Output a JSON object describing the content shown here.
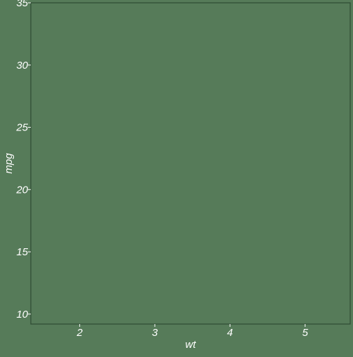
{
  "colors": {
    "background": "#567b59",
    "panel_border": "#2f4a33",
    "tick": "#ffffff",
    "text": "#ffffff"
  },
  "chart_data": {
    "type": "scatter",
    "title": "",
    "xlabel": "wt",
    "ylabel": "mpg",
    "xlim": [
      1.35,
      5.6
    ],
    "ylim": [
      9.2,
      35.0
    ],
    "x_ticks": [
      2,
      3,
      4,
      5
    ],
    "x_tick_labels": [
      "2",
      "3",
      "4",
      "5"
    ],
    "y_ticks": [
      10,
      15,
      20,
      25,
      30,
      35
    ],
    "y_tick_labels": [
      "10",
      "15",
      "20",
      "25",
      "30",
      "35"
    ],
    "grid": false,
    "legend": "none",
    "series": [
      {
        "x": [],
        "y": []
      }
    ]
  }
}
